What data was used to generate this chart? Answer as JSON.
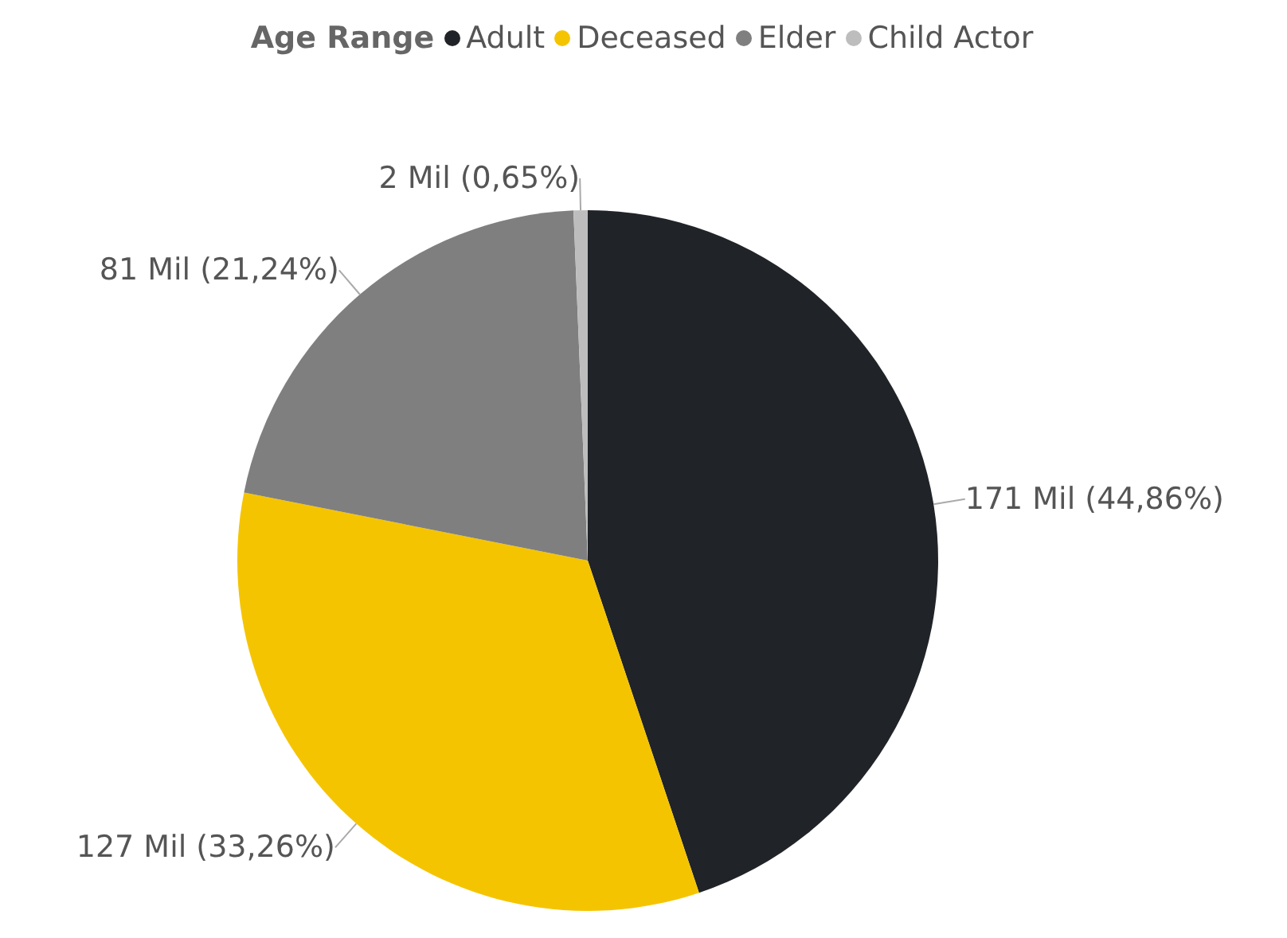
{
  "chart_data": {
    "type": "pie",
    "legend_title": "Age Range",
    "legend": "top",
    "categories": [
      "Adult",
      "Deceased",
      "Elder",
      "Child Actor"
    ],
    "values": [
      44.86,
      33.26,
      21.24,
      0.65
    ],
    "colors": [
      "#202327",
      "#f5c400",
      "#7f7f7f",
      "#bdbdbd"
    ],
    "value_labels": [
      "171 Mil (44,86%)",
      "127 Mil (33,26%)",
      "81 Mil (21,24%)",
      "2 Mil (0,65%)"
    ]
  }
}
